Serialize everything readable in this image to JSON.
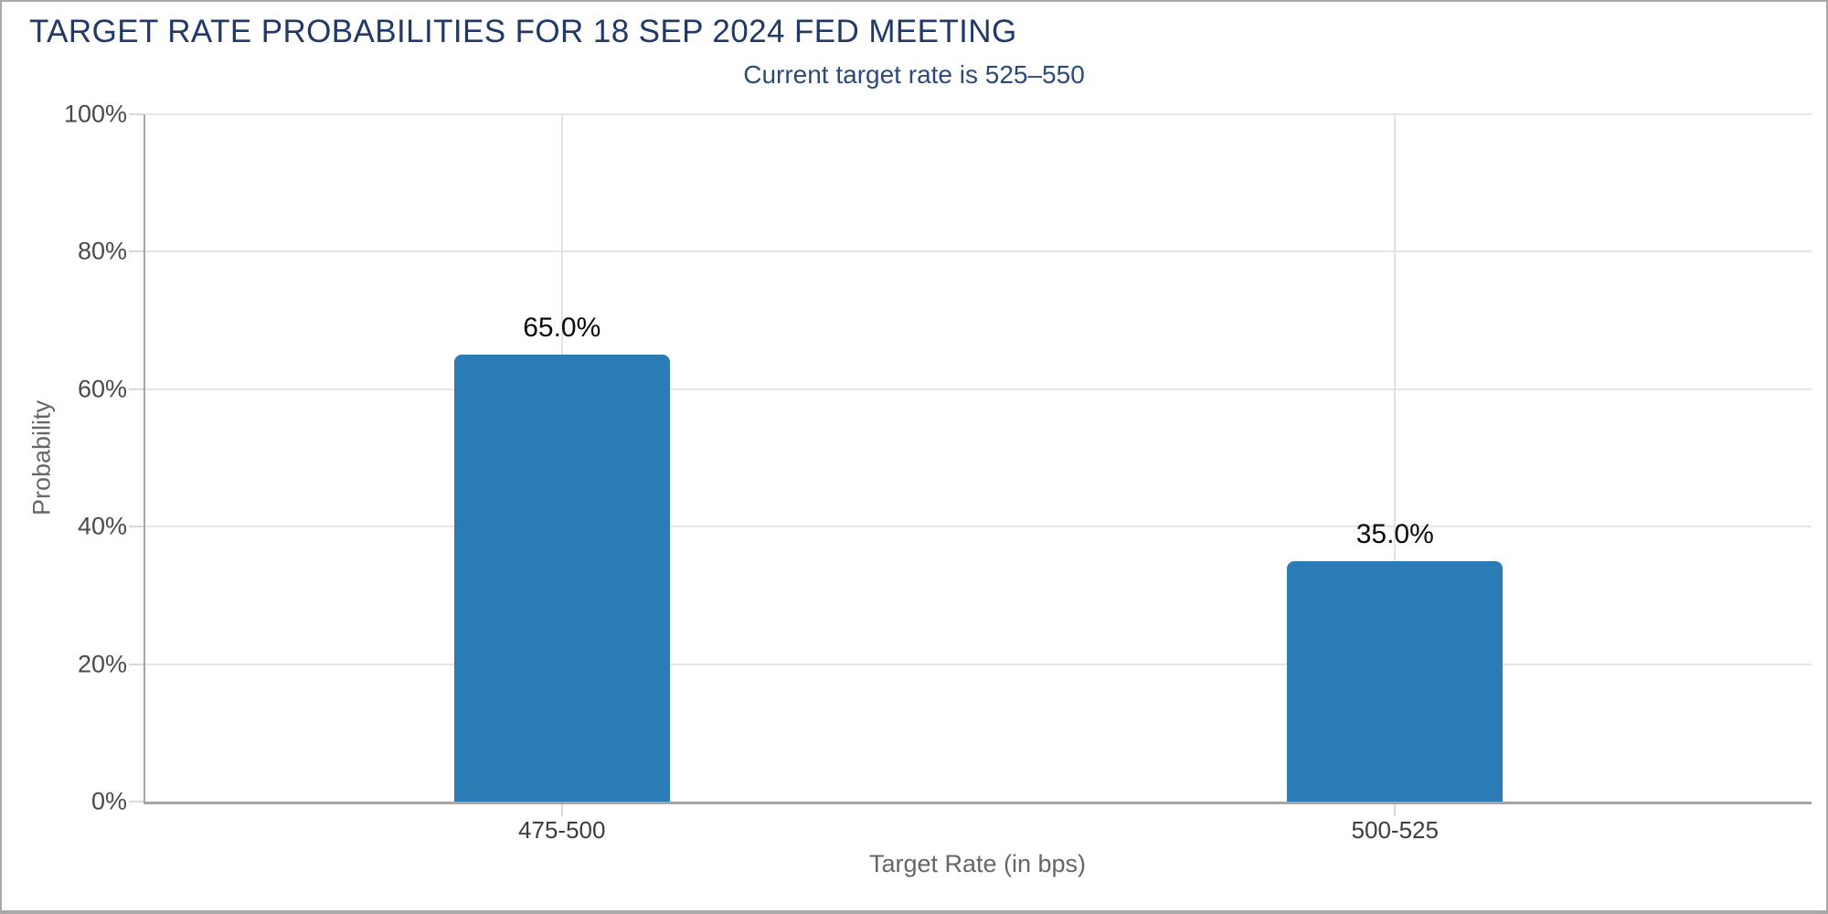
{
  "chart_data": {
    "type": "bar",
    "title": "TARGET RATE PROBABILITIES FOR 18 SEP 2024 FED MEETING",
    "subtitle": "Current target rate is 525–550",
    "categories": [
      "475-500",
      "500-525"
    ],
    "values": [
      65.0,
      35.0
    ],
    "value_labels": [
      "65.0%",
      "35.0%"
    ],
    "xlabel": "Target Rate (in bps)",
    "ylabel": "Probability",
    "ylim": [
      0,
      100
    ],
    "yticks": [
      0,
      20,
      40,
      60,
      80,
      100
    ],
    "ytick_labels": [
      "0%",
      "20%",
      "40%",
      "60%",
      "80%",
      "100%"
    ],
    "grid": true,
    "legend": false,
    "colors": {
      "bar": "#2b7cb5",
      "title": "#1f3a68",
      "subtitle": "#2b4a7a",
      "grid": "#e6e6e6",
      "vgrid": "#e2e2e2",
      "tick": "#d9d9d9",
      "axis_line": "#a5a5a5",
      "tick_label": "#4a4a4a",
      "category_label": "#3d3d3d",
      "axis_title": "#666666",
      "value_label": "#0a0a0a",
      "background": "#ffffff",
      "frame_border": "#a9a9a9"
    }
  }
}
